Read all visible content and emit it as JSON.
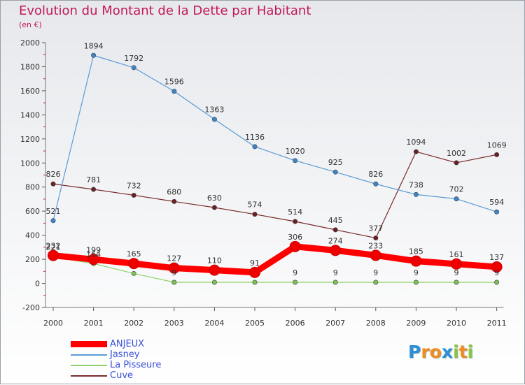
{
  "title": "Evolution du Montant de la Dette par Habitant",
  "unit": "(en €)",
  "brand": {
    "letters": [
      {
        "char": "P",
        "color": "#2c8fd8"
      },
      {
        "char": "r",
        "color": "#f28c1e"
      },
      {
        "char": "o",
        "color": "#f28c1e"
      },
      {
        "char": "x",
        "color": "#2c8fd8"
      },
      {
        "char": "i",
        "color": "#8cc63f"
      },
      {
        "char": "t",
        "color": "#f28c1e"
      },
      {
        "char": "i",
        "color": "#8cc63f"
      }
    ]
  },
  "chart_data": {
    "type": "line",
    "title": "Evolution du Montant de la Dette par Habitant",
    "subtitle": "(en €)",
    "x": [
      "2000",
      "2001",
      "2002",
      "2003",
      "2004",
      "2005",
      "2006",
      "2007",
      "2008",
      "2009",
      "2010",
      "2011"
    ],
    "ylim": [
      -200,
      2000
    ],
    "yticks": [
      -200,
      0,
      200,
      400,
      600,
      800,
      1000,
      1200,
      1400,
      1600,
      1800,
      2000
    ],
    "grid": false,
    "legend_position": "bottom-left",
    "series": [
      {
        "name": "ANJEUX",
        "color": "#ff0000",
        "marker": "#ee0000",
        "values": [
          232,
          199,
          165,
          127,
          110,
          91,
          306,
          274,
          233,
          185,
          161,
          137
        ],
        "labels": [
          "232",
          "199",
          "165",
          "127",
          "110",
          "91",
          "306",
          "274",
          "233",
          "185",
          "161",
          "137"
        ]
      },
      {
        "name": "Jasney",
        "color": "#5b9bd5",
        "marker": "#3d85c6",
        "values": [
          521,
          1894,
          1792,
          1596,
          1363,
          1136,
          1020,
          925,
          826,
          738,
          702,
          594
        ],
        "labels": [
          "521",
          "1894",
          "1792",
          "1596",
          "1363",
          "1136",
          "1020",
          "925",
          "826",
          "738",
          "702",
          "594"
        ]
      },
      {
        "name": "La Pisseure",
        "color": "#90d26a",
        "marker": "#7cc24e",
        "values": [
          221,
          164,
          82,
          9,
          9,
          9,
          9,
          9,
          9,
          9,
          9,
          9
        ],
        "labels": [
          "221",
          "164",
          "",
          "9",
          "",
          "",
          "9",
          "9",
          "9",
          "9",
          "9",
          "9"
        ]
      },
      {
        "name": "Cuve",
        "color": "#7b2c2c",
        "marker": "#6b1f1f",
        "values": [
          826,
          781,
          732,
          680,
          630,
          574,
          514,
          445,
          377,
          1094,
          1002,
          1069
        ],
        "labels": [
          "826",
          "781",
          "732",
          "680",
          "630",
          "574",
          "514",
          "445",
          "377",
          "1094",
          "1002",
          "1069"
        ]
      }
    ]
  }
}
